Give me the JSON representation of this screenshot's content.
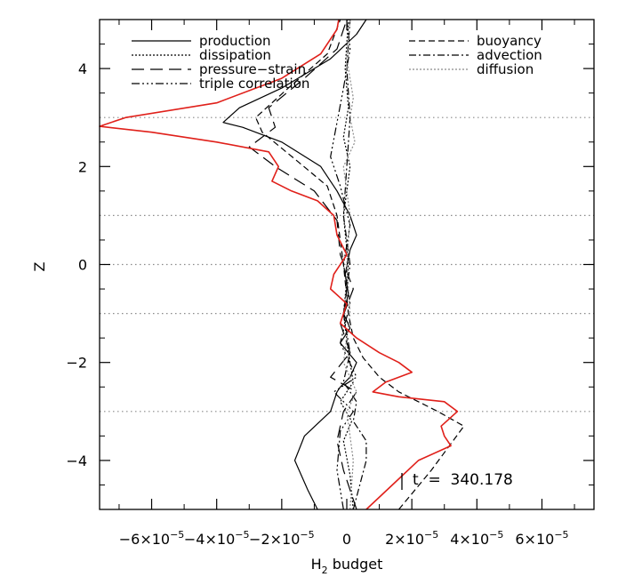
{
  "chart_data": {
    "type": "line",
    "xlabel": "H",
    "xlabel_subscript": "2",
    "xlabel_suffix": " budget",
    "ylabel": "Z",
    "xlim": [
      -7.6e-05,
      7.6e-05
    ],
    "ylim": [
      -5,
      5
    ],
    "y_ticks": [
      "−4",
      "−2",
      "0",
      "2",
      "4"
    ],
    "y_tick_values": [
      -4,
      -2,
      0,
      2,
      4
    ],
    "x_ticks": [
      {
        "value": -6e-05,
        "mantissa": "−6×10",
        "exp": "−5"
      },
      {
        "value": -4e-05,
        "mantissa": "−4×10",
        "exp": "−5"
      },
      {
        "value": -2e-05,
        "mantissa": "−2×10",
        "exp": "−5"
      },
      {
        "value": 0,
        "mantissa": "0",
        "exp": ""
      },
      {
        "value": 2e-05,
        "mantissa": "2×10",
        "exp": "−5"
      },
      {
        "value": 4e-05,
        "mantissa": "4×10",
        "exp": "−5"
      },
      {
        "value": 6e-05,
        "mantissa": "6×10",
        "exp": "−5"
      }
    ],
    "grid_lines_y": [
      -3,
      -1,
      1,
      3
    ],
    "annotation": "t  =  340.178",
    "legend": {
      "left": [
        "production",
        "dissipation",
        "pressure−strain",
        "triple correlation"
      ],
      "right": [
        "buoyancy",
        "advection",
        "diffusion"
      ]
    },
    "series": [
      {
        "name": "production",
        "color": "#000000",
        "dash": "",
        "points": [
          [
            -9e-06,
            -5
          ],
          [
            -1.2e-05,
            -4.6
          ],
          [
            -1.6e-05,
            -4.0
          ],
          [
            -1.3e-05,
            -3.5
          ],
          [
            -5e-06,
            -3.0
          ],
          [
            -3e-06,
            -2.6
          ],
          [
            -2e-06,
            -2.5
          ],
          [
            1e-06,
            -2.3
          ],
          [
            3e-06,
            -2.0
          ],
          [
            -2e-06,
            -1.6
          ],
          [
            1e-06,
            -1.3
          ],
          [
            -1e-06,
            -1.0
          ],
          [
            5e-07,
            -0.6
          ],
          [
            -5e-07,
            -0.2
          ],
          [
            1e-06,
            0.3
          ],
          [
            3e-06,
            0.6
          ],
          [
            1e-06,
            1.0
          ],
          [
            -3e-06,
            1.5
          ],
          [
            -8e-06,
            2.0
          ],
          [
            -2e-05,
            2.5
          ],
          [
            -3.2e-05,
            2.8
          ],
          [
            -3.8e-05,
            2.9
          ],
          [
            -3.3e-05,
            3.2
          ],
          [
            -2e-05,
            3.6
          ],
          [
            -5e-06,
            4.2
          ],
          [
            3e-06,
            4.7
          ],
          [
            6e-06,
            5.0
          ]
        ]
      },
      {
        "name": "dissipation",
        "color": "#000000",
        "dash": "2,2",
        "points": [
          [
            2e-06,
            -5
          ],
          [
            1e-06,
            -4.3
          ],
          [
            -1e-06,
            -3.6
          ],
          [
            1.5e-06,
            -3.2
          ],
          [
            -2e-06,
            -2.8
          ],
          [
            2e-06,
            -2.4
          ],
          [
            5e-07,
            -1.8
          ],
          [
            -1e-06,
            -1.0
          ],
          [
            5e-07,
            0.0
          ],
          [
            -1e-06,
            1.0
          ],
          [
            1e-06,
            2.0
          ],
          [
            -1e-06,
            2.6
          ],
          [
            5e-07,
            3.2
          ],
          [
            -5e-07,
            4.0
          ],
          [
            5e-07,
            5.0
          ]
        ]
      },
      {
        "name": "pressure−strain",
        "color": "#000000",
        "dash": "14,7",
        "points": [
          [
            3e-06,
            -5
          ],
          [
            -1e-06,
            -4.2
          ],
          [
            -3e-06,
            -3.6
          ],
          [
            -1e-06,
            -3.0
          ],
          [
            3e-06,
            -2.6
          ],
          [
            -5e-06,
            -2.3
          ],
          [
            1e-06,
            -1.8
          ],
          [
            -2e-06,
            -1.2
          ],
          [
            2e-06,
            -0.5
          ],
          [
            -2e-06,
            0.2
          ],
          [
            -3e-06,
            0.9
          ],
          [
            -1e-05,
            1.5
          ],
          [
            -2.2e-05,
            2.0
          ],
          [
            -3e-05,
            2.4
          ],
          [
            -2.2e-05,
            2.8
          ],
          [
            -2.4e-05,
            3.2
          ],
          [
            -1.3e-05,
            3.8
          ],
          [
            -3e-06,
            4.4
          ],
          [
            0.0,
            5.0
          ]
        ]
      },
      {
        "name": "triple correlation",
        "color": "#000000",
        "dash": "9,3,2,3,2,3,2,3",
        "points": [
          [
            -1e-06,
            -5
          ],
          [
            -3e-06,
            -4.2
          ],
          [
            -2e-06,
            -3.4
          ],
          [
            2e-06,
            -3.0
          ],
          [
            -4e-06,
            -2.6
          ],
          [
            3e-06,
            -2.3
          ],
          [
            -2e-06,
            -1.6
          ],
          [
            1e-06,
            -0.8
          ],
          [
            -1e-06,
            0.0
          ],
          [
            1e-06,
            0.8
          ],
          [
            -2e-06,
            1.6
          ],
          [
            -5e-06,
            2.2
          ],
          [
            -3e-06,
            2.9
          ],
          [
            -1e-06,
            3.6
          ],
          [
            1e-06,
            4.4
          ],
          [
            0.0,
            5.0
          ]
        ]
      },
      {
        "name": "buoyancy",
        "color": "#000000",
        "dash": "7,4",
        "points": [
          [
            1.6e-05,
            -5
          ],
          [
            2.6e-05,
            -4.2
          ],
          [
            3.6e-05,
            -3.3
          ],
          [
            2.8e-05,
            -3.0
          ],
          [
            1.6e-05,
            -2.6
          ],
          [
            1e-05,
            -2.3
          ],
          [
            5e-06,
            -1.9
          ],
          [
            2e-06,
            -1.5
          ],
          [
            5e-07,
            -1.0
          ],
          [
            -1e-06,
            0.0
          ],
          [
            -3e-06,
            1.0
          ],
          [
            -6e-06,
            1.6
          ],
          [
            -1.5e-05,
            2.1
          ],
          [
            -2.6e-05,
            2.7
          ],
          [
            -2.8e-05,
            3.0
          ],
          [
            -1.8e-05,
            3.6
          ],
          [
            -6e-06,
            4.3
          ],
          [
            -2e-06,
            5.0
          ]
        ]
      },
      {
        "name": "advection",
        "color": "#000000",
        "dash": "8,3,2,3",
        "points": [
          [
            2e-06,
            -5
          ],
          [
            4e-06,
            -4.5
          ],
          [
            6e-06,
            -4.0
          ],
          [
            6e-06,
            -3.6
          ],
          [
            2e-06,
            -3.2
          ],
          [
            3e-06,
            -2.8
          ],
          [
            -1e-06,
            -2.4
          ],
          [
            1e-06,
            -1.8
          ],
          [
            -1e-06,
            -1.0
          ],
          [
            1e-06,
            0.0
          ],
          [
            -1e-06,
            1.0
          ],
          [
            0.0,
            2.0
          ],
          [
            1e-06,
            3.0
          ],
          [
            0.0,
            4.0
          ],
          [
            1e-06,
            5.0
          ]
        ]
      },
      {
        "name": "diffusion",
        "color": "#8a8a8a",
        "dash": "2,2",
        "points": [
          [
            1e-06,
            -5
          ],
          [
            2e-06,
            -4.0
          ],
          [
            0.0,
            -3.0
          ],
          [
            3e-06,
            -2.6
          ],
          [
            -1e-06,
            -2.0
          ],
          [
            1e-06,
            -1.0
          ],
          [
            0.0,
            0.0
          ],
          [
            1e-06,
            1.0
          ],
          [
            -1e-06,
            2.0
          ],
          [
            2.5e-06,
            2.5
          ],
          [
            1e-06,
            3.0
          ],
          [
            2e-06,
            3.4
          ],
          [
            0.0,
            4.2
          ],
          [
            1e-06,
            5.0
          ]
        ]
      },
      {
        "name": "",
        "color": "#e0201a",
        "dash": "",
        "points": [
          [
            6e-06,
            -5
          ],
          [
            1.4e-05,
            -4.5
          ],
          [
            2.2e-05,
            -4.0
          ],
          [
            3.2e-05,
            -3.7
          ],
          [
            3e-05,
            -3.5
          ],
          [
            2.9e-05,
            -3.3
          ],
          [
            3.4e-05,
            -3.0
          ],
          [
            3e-05,
            -2.8
          ],
          [
            1.6e-05,
            -2.7
          ],
          [
            8e-06,
            -2.6
          ],
          [
            1.2e-05,
            -2.4
          ],
          [
            2e-05,
            -2.2
          ],
          [
            1.6e-05,
            -2.0
          ],
          [
            1e-05,
            -1.8
          ],
          [
            3e-06,
            -1.5
          ],
          [
            -2e-06,
            -1.2
          ],
          [
            0.0,
            -0.8
          ],
          [
            -5e-06,
            -0.5
          ],
          [
            -4e-06,
            -0.2
          ],
          [
            0.0,
            0.2
          ],
          [
            -3e-06,
            0.6
          ],
          [
            -4e-06,
            1.0
          ],
          [
            -9e-06,
            1.3
          ],
          [
            -1.7e-05,
            1.5
          ],
          [
            -2.3e-05,
            1.7
          ],
          [
            -2.1e-05,
            2.0
          ],
          [
            -2.4e-05,
            2.3
          ],
          [
            -4e-05,
            2.5
          ],
          [
            -6e-05,
            2.7
          ],
          [
            -7.6e-05,
            2.82
          ],
          [
            -6.8e-05,
            3.0
          ],
          [
            -4e-05,
            3.3
          ],
          [
            -2e-05,
            3.8
          ],
          [
            -8e-06,
            4.3
          ],
          [
            -3e-06,
            4.8
          ],
          [
            -2.5e-06,
            5.0
          ]
        ]
      }
    ]
  }
}
